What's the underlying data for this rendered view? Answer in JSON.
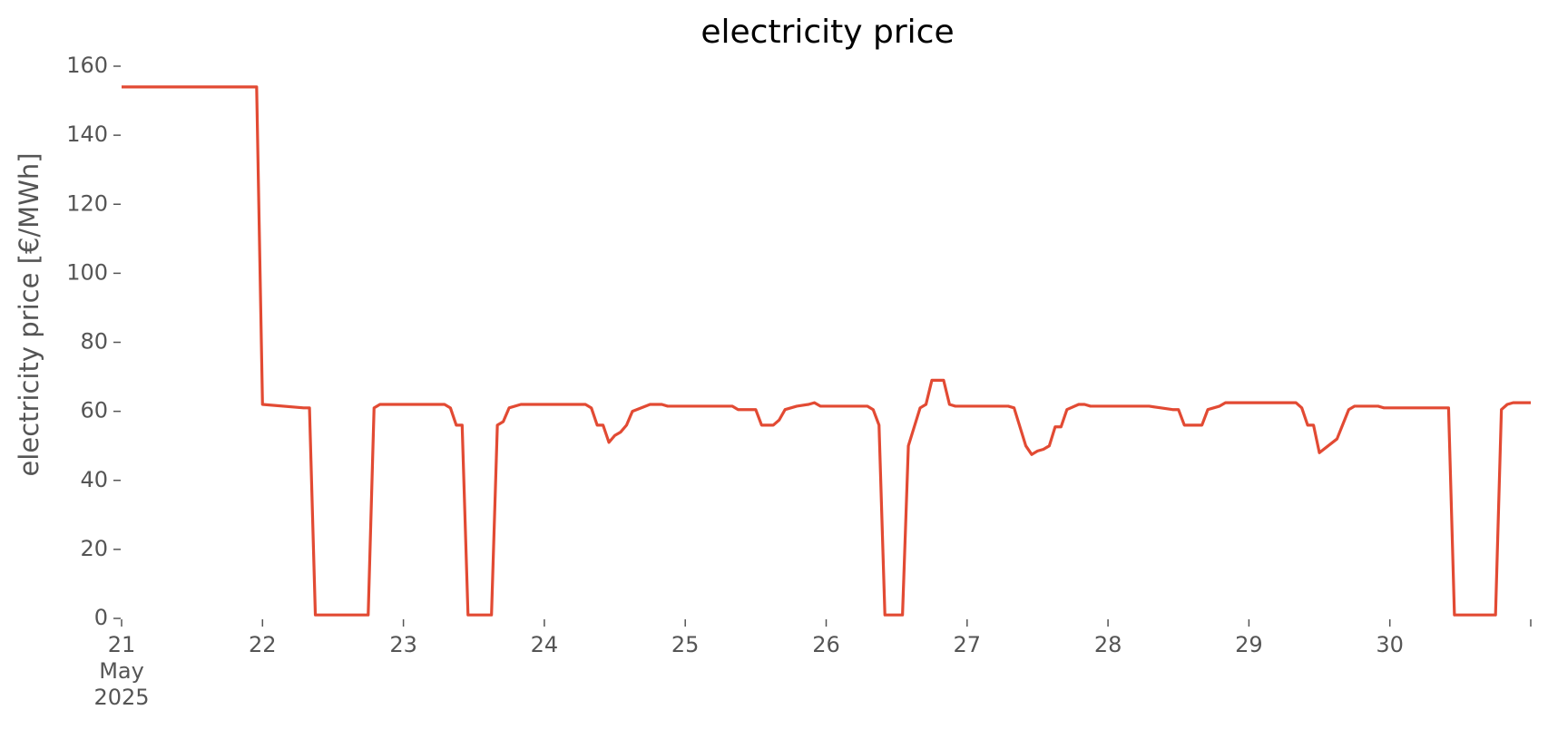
{
  "chart_data": {
    "type": "line",
    "title": "electricity price",
    "y_label": "electricity price [€/MWh]",
    "color": "#E24A33",
    "x": [
      "2025-05-21T00:00",
      "2025-05-21T23:00",
      "2025-05-22T00:00",
      "2025-05-22T07:00",
      "2025-05-22T08:00",
      "2025-05-22T09:00",
      "2025-05-22T18:00",
      "2025-05-22T19:00",
      "2025-05-22T20:00",
      "2025-05-23T07:00",
      "2025-05-23T08:00",
      "2025-05-23T09:00",
      "2025-05-23T10:00",
      "2025-05-23T11:00",
      "2025-05-23T15:00",
      "2025-05-23T16:00",
      "2025-05-23T17:00",
      "2025-05-23T18:00",
      "2025-05-23T20:00",
      "2025-05-24T07:00",
      "2025-05-24T08:00",
      "2025-05-24T09:00",
      "2025-05-24T10:00",
      "2025-05-24T11:00",
      "2025-05-24T12:00",
      "2025-05-24T13:00",
      "2025-05-24T14:00",
      "2025-05-24T15:00",
      "2025-05-24T18:00",
      "2025-05-24T20:00",
      "2025-05-24T21:00",
      "2025-05-25T08:00",
      "2025-05-25T09:00",
      "2025-05-25T12:00",
      "2025-05-25T13:00",
      "2025-05-25T15:00",
      "2025-05-25T16:00",
      "2025-05-25T17:00",
      "2025-05-25T19:00",
      "2025-05-25T21:00",
      "2025-05-25T22:00",
      "2025-05-25T23:00",
      "2025-05-26T07:00",
      "2025-05-26T08:00",
      "2025-05-26T09:00",
      "2025-05-26T10:00",
      "2025-05-26T13:00",
      "2025-05-26T14:00",
      "2025-05-26T16:00",
      "2025-05-26T17:00",
      "2025-05-26T18:00",
      "2025-05-26T20:00",
      "2025-05-26T21:00",
      "2025-05-26T22:00",
      "2025-05-27T07:00",
      "2025-05-27T08:00",
      "2025-05-27T10:00",
      "2025-05-27T11:00",
      "2025-05-27T12:00",
      "2025-05-27T13:00",
      "2025-05-27T14:00",
      "2025-05-27T15:00",
      "2025-05-27T16:00",
      "2025-05-27T17:00",
      "2025-05-27T19:00",
      "2025-05-27T20:00",
      "2025-05-27T21:00",
      "2025-05-28T07:00",
      "2025-05-28T09:00",
      "2025-05-28T11:00",
      "2025-05-28T12:00",
      "2025-05-28T13:00",
      "2025-05-28T16:00",
      "2025-05-28T17:00",
      "2025-05-28T19:00",
      "2025-05-28T20:00",
      "2025-05-29T08:00",
      "2025-05-29T09:00",
      "2025-05-29T10:00",
      "2025-05-29T11:00",
      "2025-05-29T12:00",
      "2025-05-29T15:00",
      "2025-05-29T17:00",
      "2025-05-29T18:00",
      "2025-05-29T22:00",
      "2025-05-29T23:00",
      "2025-05-30T10:00",
      "2025-05-30T11:00",
      "2025-05-30T18:00",
      "2025-05-30T19:00",
      "2025-05-30T20:00",
      "2025-05-30T21:00",
      "2025-05-31T00:00"
    ],
    "values": [
      154,
      154,
      62,
      61,
      61,
      1,
      1,
      61,
      62,
      62,
      61,
      56,
      56,
      1,
      1,
      56,
      57,
      61,
      62,
      62,
      61,
      56,
      56,
      51,
      53,
      54,
      56,
      60,
      62,
      62,
      61.5,
      61.5,
      60.5,
      60.5,
      56,
      56,
      57.5,
      60.5,
      61.5,
      62,
      62.5,
      61.5,
      61.5,
      60.5,
      56,
      1,
      1,
      50,
      61,
      62,
      69,
      69,
      62,
      61.5,
      61.5,
      61,
      50,
      47.5,
      48.5,
      49,
      50,
      55.5,
      55.5,
      60.5,
      62,
      62,
      61.5,
      61.5,
      61,
      60.5,
      60.5,
      56,
      56,
      60.5,
      61.5,
      62.5,
      62.5,
      61,
      56,
      56,
      48,
      52,
      60.5,
      61.5,
      61.5,
      61,
      61,
      1,
      1,
      60.5,
      62,
      62.5,
      62.5
    ],
    "xlim": [
      "2025-05-21T00:00",
      "2025-05-31T00:00"
    ],
    "xticks": [
      {
        "value": "2025-05-21T00:00",
        "label": "21\nMay\n2025"
      },
      {
        "value": "2025-05-22T00:00",
        "label": "22"
      },
      {
        "value": "2025-05-23T00:00",
        "label": "23"
      },
      {
        "value": "2025-05-24T00:00",
        "label": "24"
      },
      {
        "value": "2025-05-25T00:00",
        "label": "25"
      },
      {
        "value": "2025-05-26T00:00",
        "label": "26"
      },
      {
        "value": "2025-05-27T00:00",
        "label": "27"
      },
      {
        "value": "2025-05-28T00:00",
        "label": "28"
      },
      {
        "value": "2025-05-29T00:00",
        "label": "29"
      },
      {
        "value": "2025-05-30T00:00",
        "label": "30"
      },
      {
        "value": "2025-05-31T00:00",
        "label": null
      }
    ],
    "ylim": [
      0,
      160
    ],
    "yticks": [
      0,
      20,
      40,
      60,
      80,
      100,
      120,
      140,
      160
    ],
    "grid": false
  }
}
